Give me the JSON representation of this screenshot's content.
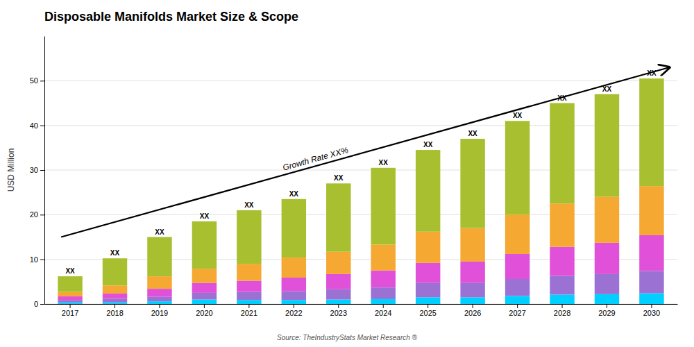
{
  "chart_data": {
    "type": "bar",
    "stacked": true,
    "grid": true,
    "title": "Disposable Manifolds Market Size & Scope",
    "ylabel": "USD Million",
    "source": "Source: TheIndustryStats Market Research ®",
    "categories": [
      "2017",
      "2018",
      "2019",
      "2020",
      "2021",
      "2022",
      "2023",
      "2024",
      "2025",
      "2026",
      "2027",
      "2028",
      "2029",
      "2030"
    ],
    "series": [
      {
        "color": "#00D0FF",
        "values": [
          0.35,
          0.35,
          0.6,
          1.0,
          0.9,
          0.9,
          1.0,
          1.1,
          1.5,
          1.5,
          1.8,
          2.1,
          2.2,
          2.4
        ]
      },
      {
        "color": "#9B72D4",
        "values": [
          0.55,
          0.8,
          1.0,
          1.5,
          1.8,
          2.0,
          2.3,
          2.6,
          3.2,
          3.2,
          3.8,
          4.2,
          4.5,
          5.0
        ]
      },
      {
        "color": "#E050D8",
        "values": [
          0.8,
          1.2,
          1.8,
          2.2,
          2.5,
          3.0,
          3.4,
          3.8,
          4.5,
          4.8,
          5.6,
          6.5,
          7.0,
          8.0
        ]
      },
      {
        "color": "#F5A832",
        "values": [
          1.0,
          1.8,
          2.8,
          3.2,
          3.8,
          4.5,
          5.0,
          5.8,
          7.0,
          7.5,
          8.8,
          9.7,
          10.3,
          11.0
        ]
      },
      {
        "color": "#A8C030",
        "values": [
          3.5,
          6.07,
          8.8,
          10.6,
          12.0,
          13.1,
          15.3,
          17.2,
          18.3,
          20.0,
          21.0,
          22.5,
          23.0,
          24.1
        ]
      }
    ],
    "ylim": [
      0,
      60
    ],
    "yticks": [
      0,
      10,
      20,
      30,
      40,
      50
    ],
    "annotations": [
      {
        "type": "arrow",
        "text": "Growth Rate XX%",
        "x_start": "2017",
        "y_start": 15,
        "x": "2030",
        "y": 53,
        "text_y": 31
      },
      {
        "text": "XX",
        "x": "2017",
        "y": 6.2
      },
      {
        "text": "XX",
        "x": "2018",
        "y": 10.2
      },
      {
        "text": "XX",
        "x": "2019",
        "y": 15.0
      },
      {
        "text": "XX",
        "x": "2020",
        "y": 18.5
      },
      {
        "text": "XX",
        "x": "2021",
        "y": 21.0
      },
      {
        "text": "XX",
        "x": "2022",
        "y": 23.5
      },
      {
        "text": "XX",
        "x": "2023",
        "y": 27.0
      },
      {
        "text": "XX",
        "x": "2024",
        "y": 30.5
      },
      {
        "text": "XX",
        "x": "2025",
        "y": 34.5
      },
      {
        "text": "XX",
        "x": "2026",
        "y": 37.0
      },
      {
        "text": "XX",
        "x": "2027",
        "y": 41.0
      },
      {
        "text": "XX",
        "x": "2028",
        "y": 45.0
      },
      {
        "text": "XX",
        "x": "2029",
        "y": 47.0
      },
      {
        "text": "XX",
        "x": "2030",
        "y": 50.5
      }
    ]
  }
}
